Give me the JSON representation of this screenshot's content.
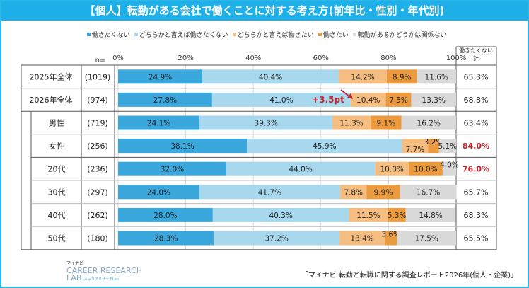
{
  "title": "【個人】転勤がある会社で働くことに対する考え方(前年比・性別・年代別)",
  "source": "「マイナビ 転勤と転職に関する調査レポート2026年(個人・企業)」",
  "logo": {
    "top": "マイナビ",
    "line1": "CAREER RESEARCH",
    "line2": "LAB",
    "sub": "キャリアリサーチLab"
  },
  "chart_data": {
    "type": "bar",
    "orientation": "horizontal-stacked-100",
    "n_label": "n=",
    "total_header": "働きたくない計",
    "xlim": [
      0,
      100
    ],
    "x_ticks": [
      "0%",
      "20%",
      "40%",
      "60%",
      "80%",
      "100%"
    ],
    "grid": true,
    "legend_position": "top",
    "series": [
      {
        "name": "働きたくない",
        "color": "#3aa8dc"
      },
      {
        "name": "どちらかと言えば働きたくない",
        "color": "#a8d8ee"
      },
      {
        "name": "どちらかと言えば働きたい",
        "color": "#f5bd80"
      },
      {
        "name": "働きたい",
        "color": "#eb9a3e"
      },
      {
        "name": "転勤があるかどうかは関係ない",
        "color": "#d9d9d9"
      }
    ],
    "rows": [
      {
        "label": "2025年全体",
        "n": "(1019)",
        "values": [
          24.9,
          40.4,
          14.2,
          8.9,
          11.6
        ],
        "total": "65.3%",
        "highlight": false,
        "indent": false
      },
      {
        "label": "2026年全体",
        "n": "(974)",
        "values": [
          27.8,
          41.0,
          10.4,
          7.5,
          13.3
        ],
        "total": "68.8%",
        "highlight": false,
        "indent": false
      },
      {
        "label": "男性",
        "n": "(719)",
        "values": [
          24.1,
          39.3,
          11.3,
          9.1,
          16.2
        ],
        "total": "63.4%",
        "highlight": false,
        "indent": true
      },
      {
        "label": "女性",
        "n": "(256)",
        "values": [
          38.1,
          45.9,
          7.7,
          3.2,
          5.1
        ],
        "total": "84.0%",
        "highlight": true,
        "indent": true
      },
      {
        "label": "20代",
        "n": "(236)",
        "values": [
          32.0,
          44.0,
          10.0,
          10.0,
          4.0
        ],
        "total": "76.0%",
        "highlight": true,
        "indent": true
      },
      {
        "label": "30代",
        "n": "(297)",
        "values": [
          24.0,
          41.7,
          7.8,
          9.9,
          16.7
        ],
        "total": "65.7%",
        "highlight": false,
        "indent": true
      },
      {
        "label": "40代",
        "n": "(262)",
        "values": [
          28.0,
          40.3,
          11.5,
          5.3,
          14.8
        ],
        "total": "68.3%",
        "highlight": false,
        "indent": true
      },
      {
        "label": "50代",
        "n": "(180)",
        "values": [
          28.3,
          37.2,
          13.4,
          3.6,
          17.5
        ],
        "total": "65.5%",
        "highlight": false,
        "indent": true
      }
    ],
    "annotation": {
      "text": "+3.5pt",
      "color": "#c0282d"
    },
    "highlight_color": "#c0282d"
  }
}
